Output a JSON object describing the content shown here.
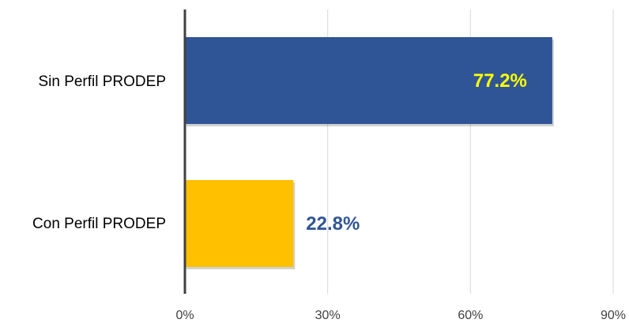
{
  "chart_data": {
    "type": "bar",
    "orientation": "horizontal",
    "categories": [
      "Sin Perfil PRODEP",
      "Con Perfil PRODEP"
    ],
    "values": [
      77.2,
      22.8
    ],
    "data_labels": [
      "77.2%",
      "22.8%"
    ],
    "bar_colors": [
      "#2F5597",
      "#FFC000"
    ],
    "label_colors": [
      "#FFFF00",
      "#2F5597"
    ],
    "label_positions": [
      "inside-end",
      "outside-end"
    ],
    "x_ticks": [
      0,
      30,
      60,
      90
    ],
    "x_tick_labels": [
      "0%",
      "30%",
      "60%",
      "90%"
    ],
    "xlim": [
      0,
      90
    ],
    "grid": "vertical",
    "title": "",
    "xlabel": "",
    "ylabel": "",
    "legend": "none"
  }
}
